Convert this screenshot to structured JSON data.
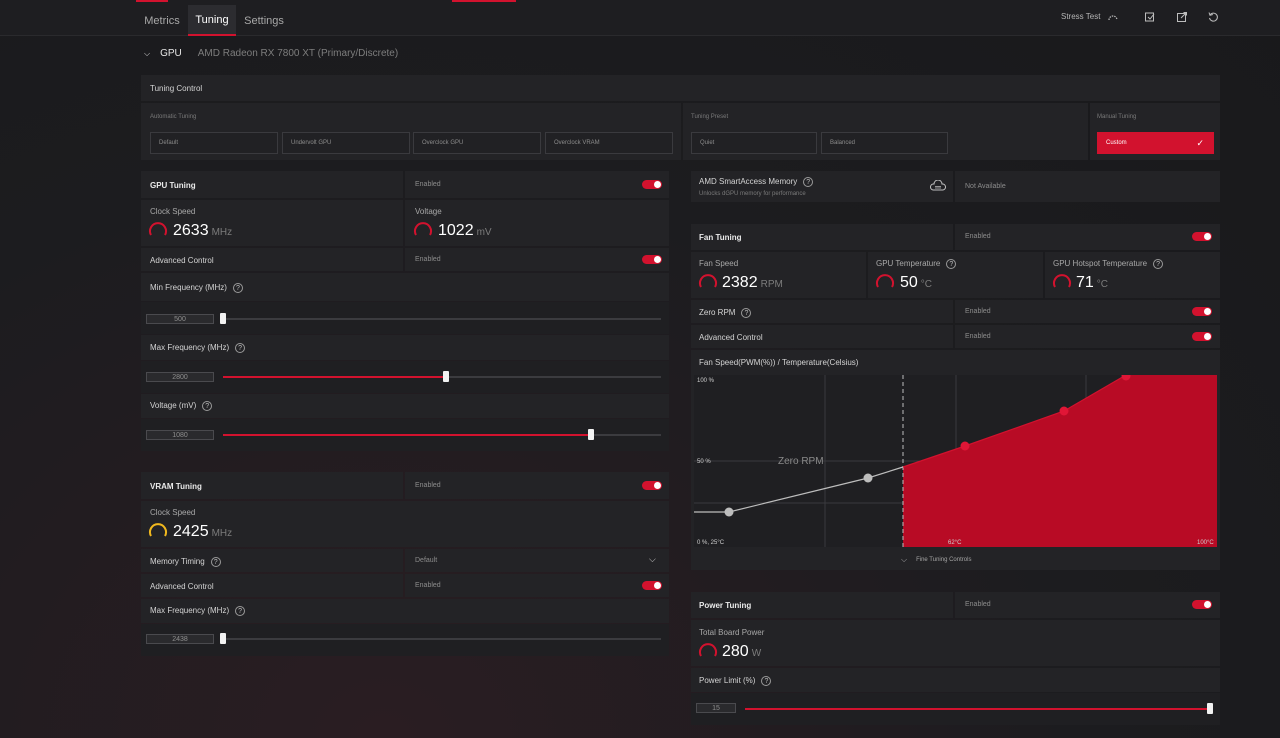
{
  "nav": {
    "tabs": [
      {
        "label": "Metrics"
      },
      {
        "label": "Tuning"
      },
      {
        "label": "Settings"
      }
    ],
    "stress_test": "Stress Test",
    "icons": [
      "gauge-icon",
      "export-icon",
      "share-icon",
      "reset-icon"
    ]
  },
  "gpu": {
    "label": "GPU",
    "name": "AMD Radeon RX 7800 XT (Primary/Discrete)"
  },
  "tuning_control": {
    "title": "Tuning Control",
    "automatic_label": "Automatic Tuning",
    "automatic_options": [
      "Default",
      "Undervolt GPU",
      "Overclock GPU",
      "Overclock VRAM"
    ],
    "preset_label": "Tuning Preset",
    "preset_options": [
      "Quiet",
      "Balanced"
    ],
    "manual_label": "Manual Tuning",
    "manual_value": "Custom"
  },
  "gpu_tuning": {
    "title": "GPU Tuning",
    "state": "Enabled",
    "clock_label": "Clock Speed",
    "clock_value": "2633",
    "clock_unit": "MHz",
    "voltage_label": "Voltage",
    "voltage_value": "1022",
    "voltage_unit": "mV",
    "advanced_label": "Advanced Control",
    "advanced_state": "Enabled",
    "min_freq_label": "Min Frequency (MHz)",
    "min_freq_value": "500",
    "min_freq_fraction": 0.0,
    "max_freq_label": "Max Frequency (MHz)",
    "max_freq_value": "2800",
    "max_freq_fraction": 0.51,
    "voltage_mv_label": "Voltage (mV)",
    "voltage_mv_value": "1080",
    "voltage_mv_fraction": 0.84
  },
  "vram_tuning": {
    "title": "VRAM Tuning",
    "state": "Enabled",
    "clock_label": "Clock Speed",
    "clock_value": "2425",
    "clock_unit": "MHz",
    "memory_timing_label": "Memory Timing",
    "memory_timing_value": "Default",
    "advanced_label": "Advanced Control",
    "advanced_state": "Enabled",
    "max_freq_label": "Max Frequency (MHz)",
    "max_freq_value": "2438",
    "max_freq_fraction": 0.0
  },
  "sam": {
    "title": "AMD SmartAccess Memory",
    "desc": "Unlocks dGPU memory for performance",
    "status": "Not Available"
  },
  "fan_tuning": {
    "title": "Fan Tuning",
    "state": "Enabled",
    "fan_speed_label": "Fan Speed",
    "fan_speed_value": "2382",
    "fan_speed_unit": "RPM",
    "gpu_temp_label": "GPU Temperature",
    "gpu_temp_value": "50",
    "gpu_temp_unit": "°C",
    "hotspot_label": "GPU Hotspot Temperature",
    "hotspot_value": "71",
    "hotspot_unit": "°C",
    "zero_rpm_label": "Zero RPM",
    "zero_rpm_state": "Enabled",
    "advanced_label": "Advanced Control",
    "advanced_state": "Enabled",
    "curve_title": "Fan Speed(PWM(%)) / Temperature(Celsius)",
    "curve_y_top": "100 %",
    "curve_y_mid": "50 %",
    "curve_origin": "0 %, 25°C",
    "curve_x_mid": "62°C",
    "curve_x_max": "100°C",
    "zero_rpm_region": "Zero RPM",
    "fine_tuning": "Fine Tuning Controls"
  },
  "power_tuning": {
    "title": "Power Tuning",
    "state": "Enabled",
    "board_power_label": "Total Board Power",
    "board_power_value": "280",
    "board_power_unit": "W",
    "limit_label": "Power Limit (%)",
    "limit_value": "15",
    "limit_fraction": 1.0
  },
  "colors": {
    "accent": "#d2122e",
    "vram_accent": "#f0b81e",
    "panel": "#232326",
    "background": "#1c1c1f"
  }
}
